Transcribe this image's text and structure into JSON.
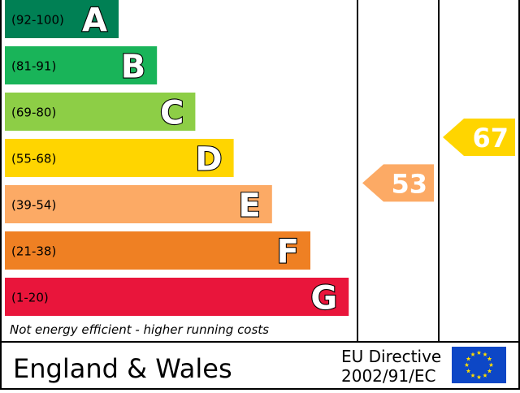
{
  "chart_data": {
    "type": "bar",
    "bands": [
      {
        "range": "(92-100)",
        "letter": "A",
        "color": "#008054"
      },
      {
        "range": "(81-91)",
        "letter": "B",
        "color": "#19b459"
      },
      {
        "range": "(69-80)",
        "letter": "C",
        "color": "#8dce46"
      },
      {
        "range": "(55-68)",
        "letter": "D",
        "color": "#ffd500"
      },
      {
        "range": "(39-54)",
        "letter": "E",
        "color": "#fcaa65"
      },
      {
        "range": "(21-38)",
        "letter": "F",
        "color": "#ef8023"
      },
      {
        "range": "(1-20)",
        "letter": "G",
        "color": "#e9153b"
      }
    ],
    "ratings": [
      {
        "value": 53,
        "band": "E",
        "color": "#fcaa65"
      },
      {
        "value": 67,
        "band": "D",
        "color": "#ffd500"
      }
    ]
  },
  "footer_note": "Not energy efficient - higher running costs",
  "region": "England & Wales",
  "directive": {
    "line1": "EU Directive",
    "line2": "2002/91/EC"
  },
  "colors": {
    "border": "#000000",
    "flag_blue": "#0d47c6",
    "flag_stars": "#ffdd00"
  }
}
